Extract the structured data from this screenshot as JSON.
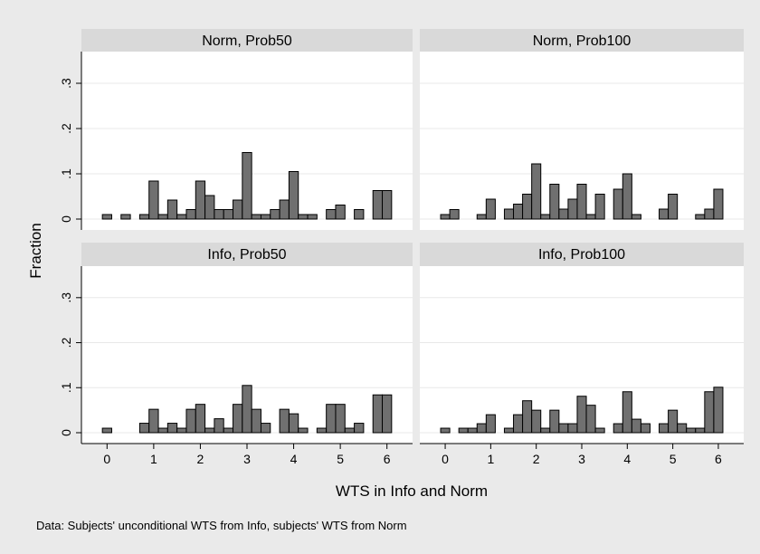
{
  "chart_data": {
    "type": "bar",
    "layout": "2x2 small multiples",
    "xlabel": "WTS in Info and Norm",
    "ylabel": "Fraction",
    "note": "Data: Subjects' unconditional WTS from Info, subjects' WTS from Norm",
    "xlim": [
      -0.2,
      6.2
    ],
    "ylim": [
      0,
      0.37
    ],
    "xticks": [
      0,
      1,
      2,
      3,
      4,
      5,
      6
    ],
    "yticks": [
      0,
      0.1,
      0.2,
      0.3
    ],
    "ytick_labels": [
      "0",
      ".1",
      ".2",
      ".3"
    ],
    "bin_width": 0.2,
    "grid": true,
    "colors": {
      "bar_fill": "#707070",
      "bar_stroke": "#000000",
      "panel_header": "#d9d9d9",
      "panel_bg": "#ffffff",
      "outer_bg": "#eaeaea",
      "gridline": "#e8e8e8"
    },
    "panels": [
      {
        "title": "Norm, Prob50",
        "bars": [
          {
            "x": 0.0,
            "y": 0.01
          },
          {
            "x": 0.4,
            "y": 0.01
          },
          {
            "x": 0.8,
            "y": 0.01
          },
          {
            "x": 1.0,
            "y": 0.084
          },
          {
            "x": 1.2,
            "y": 0.01
          },
          {
            "x": 1.4,
            "y": 0.042
          },
          {
            "x": 1.6,
            "y": 0.01
          },
          {
            "x": 1.8,
            "y": 0.021
          },
          {
            "x": 2.0,
            "y": 0.084
          },
          {
            "x": 2.2,
            "y": 0.052
          },
          {
            "x": 2.4,
            "y": 0.021
          },
          {
            "x": 2.6,
            "y": 0.021
          },
          {
            "x": 2.8,
            "y": 0.042
          },
          {
            "x": 3.0,
            "y": 0.147
          },
          {
            "x": 3.2,
            "y": 0.01
          },
          {
            "x": 3.4,
            "y": 0.01
          },
          {
            "x": 3.6,
            "y": 0.021
          },
          {
            "x": 3.8,
            "y": 0.042
          },
          {
            "x": 4.0,
            "y": 0.105
          },
          {
            "x": 4.2,
            "y": 0.01
          },
          {
            "x": 4.4,
            "y": 0.01
          },
          {
            "x": 4.8,
            "y": 0.021
          },
          {
            "x": 5.0,
            "y": 0.031
          },
          {
            "x": 5.4,
            "y": 0.021
          },
          {
            "x": 5.8,
            "y": 0.063
          },
          {
            "x": 6.0,
            "y": 0.063
          }
        ]
      },
      {
        "title": "Norm, Prob100",
        "bars": [
          {
            "x": 0.0,
            "y": 0.01
          },
          {
            "x": 0.2,
            "y": 0.021
          },
          {
            "x": 0.8,
            "y": 0.01
          },
          {
            "x": 1.0,
            "y": 0.044
          },
          {
            "x": 1.4,
            "y": 0.022
          },
          {
            "x": 1.6,
            "y": 0.033
          },
          {
            "x": 1.8,
            "y": 0.055
          },
          {
            "x": 2.0,
            "y": 0.122
          },
          {
            "x": 2.2,
            "y": 0.01
          },
          {
            "x": 2.4,
            "y": 0.077
          },
          {
            "x": 2.6,
            "y": 0.022
          },
          {
            "x": 2.8,
            "y": 0.044
          },
          {
            "x": 3.0,
            "y": 0.077
          },
          {
            "x": 3.2,
            "y": 0.01
          },
          {
            "x": 3.4,
            "y": 0.055
          },
          {
            "x": 3.8,
            "y": 0.066
          },
          {
            "x": 4.0,
            "y": 0.1
          },
          {
            "x": 4.2,
            "y": 0.01
          },
          {
            "x": 4.8,
            "y": 0.022
          },
          {
            "x": 5.0,
            "y": 0.055
          },
          {
            "x": 5.6,
            "y": 0.01
          },
          {
            "x": 5.8,
            "y": 0.022
          },
          {
            "x": 6.0,
            "y": 0.066
          }
        ]
      },
      {
        "title": "Info, Prob50",
        "bars": [
          {
            "x": 0.0,
            "y": 0.01
          },
          {
            "x": 0.8,
            "y": 0.021
          },
          {
            "x": 1.0,
            "y": 0.052
          },
          {
            "x": 1.2,
            "y": 0.01
          },
          {
            "x": 1.4,
            "y": 0.021
          },
          {
            "x": 1.6,
            "y": 0.01
          },
          {
            "x": 1.8,
            "y": 0.052
          },
          {
            "x": 2.0,
            "y": 0.063
          },
          {
            "x": 2.2,
            "y": 0.01
          },
          {
            "x": 2.4,
            "y": 0.031
          },
          {
            "x": 2.6,
            "y": 0.01
          },
          {
            "x": 2.8,
            "y": 0.063
          },
          {
            "x": 3.0,
            "y": 0.105
          },
          {
            "x": 3.2,
            "y": 0.052
          },
          {
            "x": 3.4,
            "y": 0.021
          },
          {
            "x": 3.8,
            "y": 0.052
          },
          {
            "x": 4.0,
            "y": 0.042
          },
          {
            "x": 4.2,
            "y": 0.01
          },
          {
            "x": 4.6,
            "y": 0.01
          },
          {
            "x": 4.8,
            "y": 0.063
          },
          {
            "x": 5.0,
            "y": 0.063
          },
          {
            "x": 5.2,
            "y": 0.01
          },
          {
            "x": 5.4,
            "y": 0.021
          },
          {
            "x": 5.8,
            "y": 0.084
          },
          {
            "x": 6.0,
            "y": 0.084
          }
        ]
      },
      {
        "title": "Info, Prob100",
        "bars": [
          {
            "x": 0.0,
            "y": 0.01
          },
          {
            "x": 0.4,
            "y": 0.01
          },
          {
            "x": 0.6,
            "y": 0.01
          },
          {
            "x": 0.8,
            "y": 0.02
          },
          {
            "x": 1.0,
            "y": 0.04
          },
          {
            "x": 1.4,
            "y": 0.01
          },
          {
            "x": 1.6,
            "y": 0.04
          },
          {
            "x": 1.8,
            "y": 0.071
          },
          {
            "x": 2.0,
            "y": 0.05
          },
          {
            "x": 2.2,
            "y": 0.01
          },
          {
            "x": 2.4,
            "y": 0.05
          },
          {
            "x": 2.6,
            "y": 0.02
          },
          {
            "x": 2.8,
            "y": 0.02
          },
          {
            "x": 3.0,
            "y": 0.081
          },
          {
            "x": 3.2,
            "y": 0.061
          },
          {
            "x": 3.4,
            "y": 0.01
          },
          {
            "x": 3.8,
            "y": 0.02
          },
          {
            "x": 4.0,
            "y": 0.091
          },
          {
            "x": 4.2,
            "y": 0.03
          },
          {
            "x": 4.4,
            "y": 0.02
          },
          {
            "x": 4.8,
            "y": 0.02
          },
          {
            "x": 5.0,
            "y": 0.05
          },
          {
            "x": 5.2,
            "y": 0.02
          },
          {
            "x": 5.4,
            "y": 0.01
          },
          {
            "x": 5.6,
            "y": 0.01
          },
          {
            "x": 5.8,
            "y": 0.091
          },
          {
            "x": 6.0,
            "y": 0.101
          }
        ]
      }
    ]
  }
}
